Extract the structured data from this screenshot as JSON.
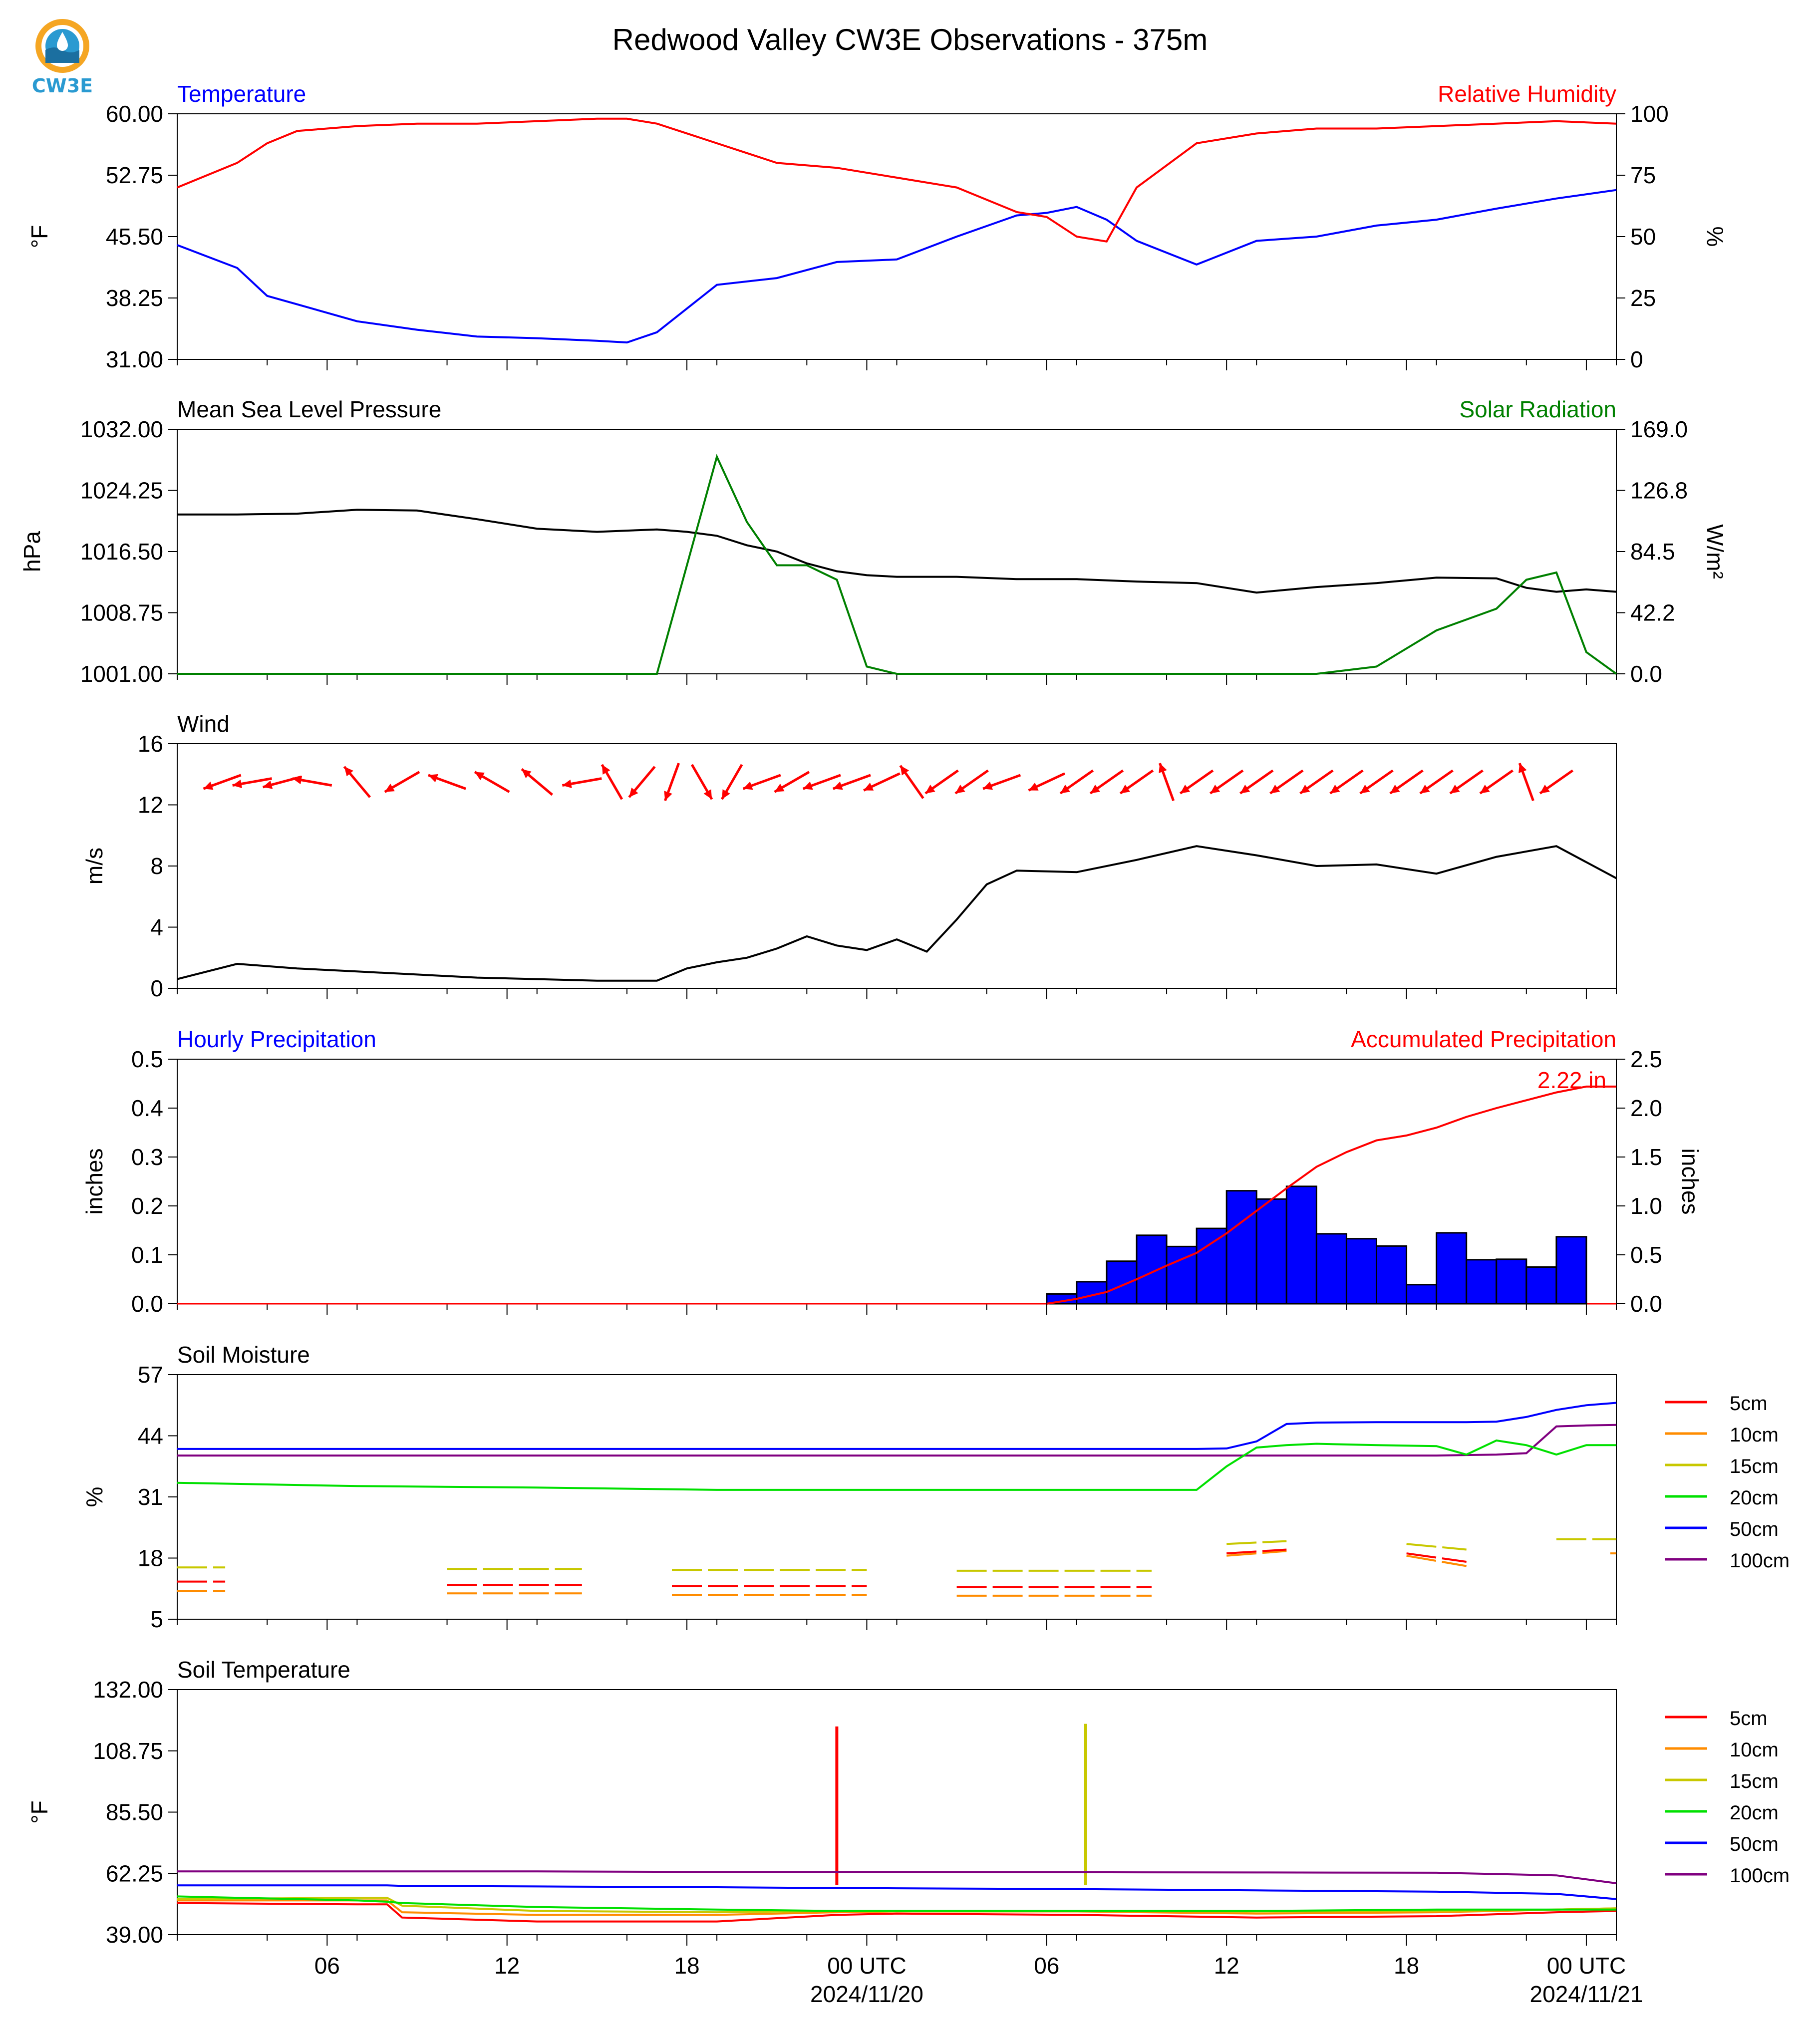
{
  "title": "Redwood Valley CW3E Observations - 375m",
  "logo": {
    "text": "CW3E",
    "color_orange": "#f5a623",
    "color_blue": "#2a9ad1"
  },
  "colors": {
    "blue": "#0000ff",
    "red": "#ff0000",
    "green": "#008000",
    "black": "#000000",
    "s5": "#ff0000",
    "s10": "#ff8c00",
    "s15": "#c8c800",
    "s20": "#00e000",
    "s50": "#0000ff",
    "s100": "#800080"
  },
  "x_axis": {
    "range_hours": [
      0,
      48
    ],
    "ticks_hours": [
      0,
      3,
      6,
      9,
      12,
      15,
      18,
      21,
      24,
      27,
      30,
      33,
      36,
      39,
      42,
      45,
      48
    ],
    "labeled": [
      {
        "h": 5,
        "text": "06"
      },
      {
        "h": 11,
        "text": "12"
      },
      {
        "h": 17,
        "text": "18"
      },
      {
        "h": 23,
        "text": "00 UTC",
        "sub": "2024/11/20"
      },
      {
        "h": 29,
        "text": "06"
      },
      {
        "h": 35,
        "text": "12"
      },
      {
        "h": 41,
        "text": "18"
      },
      {
        "h": 47,
        "text": "00 UTC",
        "sub": "2024/11/21"
      }
    ]
  },
  "panels": {
    "temp_rh": {
      "left_title": "Temperature",
      "right_title": "Relative Humidity",
      "left_ylabel": "°F",
      "right_ylabel": "%",
      "left_ticks": [
        "60.00",
        "52.75",
        "45.50",
        "38.25",
        "31.00"
      ],
      "right_ticks": [
        "100",
        "75",
        "50",
        "25",
        "0"
      ]
    },
    "pressure_solar": {
      "left_title": "Mean Sea Level Pressure",
      "right_title": "Solar Radiation",
      "left_ylabel": "hPa",
      "right_ylabel": "W/m²",
      "left_ticks": [
        "1032.00",
        "1024.25",
        "1016.50",
        "1008.75",
        "1001.00"
      ],
      "right_ticks": [
        "169.0",
        "126.8",
        "84.5",
        "42.2",
        "0.0"
      ]
    },
    "wind": {
      "left_title": "Wind",
      "left_ylabel": "m/s",
      "left_ticks": [
        "16",
        "12",
        "8",
        "4",
        "0"
      ]
    },
    "precip": {
      "left_title": "Hourly Precipitation",
      "right_title": "Accumulated Precipitation",
      "left_ylabel": "inches",
      "right_ylabel": "inches",
      "left_ticks": [
        "0.5",
        "0.4",
        "0.3",
        "0.2",
        "0.1",
        "0.0"
      ],
      "right_ticks": [
        "2.5",
        "2.0",
        "1.5",
        "1.0",
        "0.5",
        "0.0"
      ],
      "annotation": "2.22 in"
    },
    "soil_moisture": {
      "left_title": "Soil Moisture",
      "left_ylabel": "%",
      "left_ticks": [
        "57",
        "44",
        "31",
        "18",
        "5"
      ],
      "legend": [
        "5cm",
        "10cm",
        "15cm",
        "20cm",
        "50cm",
        "100cm"
      ]
    },
    "soil_temp": {
      "left_title": "Soil Temperature",
      "left_ylabel": "°F",
      "left_ticks": [
        "132.00",
        "108.75",
        "85.50",
        "62.25",
        "39.00"
      ],
      "legend": [
        "5cm",
        "10cm",
        "15cm",
        "20cm",
        "50cm",
        "100cm"
      ]
    }
  },
  "chart_data": [
    {
      "type": "line",
      "title": "Temperature / Relative Humidity",
      "x_hours": [
        0,
        2,
        3,
        4,
        6,
        8,
        10,
        12,
        14,
        15,
        16,
        18,
        20,
        22,
        24,
        26,
        28,
        29,
        30,
        31,
        32,
        34,
        36,
        38,
        40,
        42,
        44,
        46,
        48
      ],
      "series": [
        {
          "name": "Temperature",
          "axis": "left",
          "ylim": [
            31,
            60
          ],
          "values": [
            44.5,
            41.8,
            38.5,
            37.5,
            35.5,
            34.5,
            33.7,
            33.5,
            33.2,
            33.0,
            34.2,
            39.8,
            40.6,
            42.5,
            42.8,
            45.5,
            48.0,
            48.3,
            49.0,
            47.5,
            45.0,
            42.2,
            45.0,
            45.5,
            46.8,
            47.5,
            48.8,
            50.0,
            51.0
          ]
        },
        {
          "name": "Relative Humidity",
          "axis": "right",
          "ylim": [
            0,
            100
          ],
          "values": [
            70,
            80,
            88,
            93,
            95,
            96,
            96,
            97,
            98,
            98,
            96,
            88,
            80,
            78,
            74,
            70,
            60,
            58,
            50,
            48,
            70,
            88,
            92,
            94,
            94,
            95,
            96,
            97,
            96
          ]
        }
      ]
    },
    {
      "type": "line",
      "title": "Mean Sea Level Pressure / Solar Radiation",
      "x_hours": [
        0,
        2,
        4,
        6,
        8,
        10,
        12,
        14,
        16,
        17,
        18,
        19,
        20,
        21,
        22,
        23,
        24,
        26,
        28,
        30,
        32,
        34,
        36,
        38,
        40,
        42,
        44,
        45,
        46,
        47,
        48
      ],
      "series": [
        {
          "name": "Mean Sea Level Pressure",
          "axis": "left",
          "ylim": [
            1001,
            1032
          ],
          "values": [
            1021.2,
            1021.2,
            1021.3,
            1021.8,
            1021.7,
            1020.6,
            1019.4,
            1019.0,
            1019.3,
            1019.0,
            1018.5,
            1017.3,
            1016.5,
            1015.0,
            1014.0,
            1013.5,
            1013.3,
            1013.3,
            1013.0,
            1013.0,
            1012.7,
            1012.5,
            1011.3,
            1012.0,
            1012.5,
            1013.2,
            1013.1,
            1011.9,
            1011.4,
            1011.7,
            1011.4
          ]
        },
        {
          "name": "Solar Radiation",
          "axis": "right",
          "ylim": [
            0,
            169
          ],
          "values": [
            0,
            0,
            0,
            0,
            0,
            0,
            0,
            0,
            0,
            75,
            150,
            105,
            75,
            75,
            65,
            5,
            0,
            0,
            0,
            0,
            0,
            0,
            0,
            0,
            5,
            30,
            45,
            65,
            70,
            15,
            0
          ]
        }
      ]
    },
    {
      "type": "line",
      "title": "Wind",
      "ylim": [
        0,
        16
      ],
      "x_hours": [
        0,
        2,
        4,
        6,
        8,
        10,
        12,
        14,
        16,
        17,
        18,
        19,
        20,
        21,
        22,
        23,
        24,
        25,
        26,
        27,
        28,
        30,
        32,
        34,
        36,
        38,
        40,
        42,
        44,
        46,
        48
      ],
      "values": [
        0.6,
        1.6,
        1.3,
        1.1,
        0.9,
        0.7,
        0.6,
        0.5,
        0.5,
        1.3,
        1.7,
        2.0,
        2.6,
        3.4,
        2.8,
        2.5,
        3.2,
        2.4,
        4.5,
        6.8,
        7.7,
        7.6,
        8.4,
        9.3,
        8.7,
        8.0,
        8.1,
        7.5,
        8.6,
        9.3,
        7.2
      ],
      "barbs": {
        "x_hours": [
          1.5,
          2.5,
          3.5,
          4.5,
          6,
          7.5,
          9,
          10.5,
          12,
          13.5,
          14.5,
          15.5,
          16.5,
          17.5,
          18.5,
          19.5,
          20.5,
          21.5,
          22.5,
          23.5,
          24.5,
          25.5,
          26.5,
          27.5,
          29.0,
          30.0,
          31.0,
          32.0,
          33.0,
          34.0,
          35.0,
          36.0,
          37.0,
          38.0,
          39.0,
          40.0,
          41.0,
          42.0,
          43.0,
          44.0,
          45.0,
          46.0
        ],
        "dir_deg": [
          250,
          260,
          255,
          280,
          320,
          240,
          290,
          300,
          310,
          260,
          330,
          220,
          200,
          150,
          210,
          250,
          240,
          250,
          250,
          245,
          325,
          235,
          235,
          250,
          245,
          235,
          235,
          235,
          340,
          235,
          235,
          235,
          235,
          235,
          235,
          235,
          235,
          235,
          235,
          235,
          340,
          235
        ]
      }
    },
    {
      "type": "bar",
      "title": "Hourly Precipitation / Accumulated Precipitation",
      "x_hours_start": [
        29,
        30,
        31,
        32,
        33,
        34,
        35,
        36,
        37,
        38,
        39,
        40,
        41,
        42,
        43,
        44,
        45,
        46,
        47
      ],
      "values": [
        0.02,
        0.045,
        0.087,
        0.14,
        0.117,
        0.154,
        0.231,
        0.214,
        0.24,
        0.143,
        0.133,
        0.118,
        0.039,
        0.145,
        0.09,
        0.091,
        0.075,
        0.137,
        0.0
      ],
      "ylim": [
        0,
        0.5
      ],
      "accumulated": {
        "x_hours": [
          29,
          30,
          31,
          32,
          33,
          34,
          35,
          36,
          37,
          38,
          39,
          40,
          41,
          42,
          43,
          44,
          45,
          46,
          47,
          48
        ],
        "values": [
          0.0,
          0.05,
          0.12,
          0.25,
          0.39,
          0.52,
          0.72,
          0.95,
          1.18,
          1.4,
          1.55,
          1.67,
          1.72,
          1.8,
          1.91,
          2.0,
          2.08,
          2.16,
          2.22,
          2.22
        ],
        "ylim": [
          0,
          2.5
        ]
      }
    },
    {
      "type": "line",
      "title": "Soil Moisture",
      "ylim": [
        5,
        57
      ],
      "x_hours": [
        0,
        6,
        12,
        18,
        24,
        30,
        33,
        34,
        35,
        36,
        37,
        38,
        40,
        42,
        43,
        44,
        45,
        46,
        47,
        48
      ],
      "series": [
        {
          "name": "50cm",
          "values": [
            41.2,
            41.2,
            41.2,
            41.2,
            41.2,
            41.2,
            41.2,
            41.2,
            41.3,
            42.8,
            46.5,
            46.8,
            46.9,
            46.9,
            46.9,
            47.0,
            48.0,
            49.5,
            50.5,
            51.0
          ]
        },
        {
          "name": "100cm",
          "values": [
            39.8,
            39.8,
            39.8,
            39.8,
            39.8,
            39.8,
            39.8,
            39.8,
            39.8,
            39.8,
            39.8,
            39.8,
            39.8,
            39.8,
            39.9,
            40.0,
            40.3,
            46.0,
            46.2,
            46.3
          ]
        },
        {
          "name": "20cm",
          "values": [
            34.0,
            33.3,
            33.0,
            32.5,
            32.5,
            32.5,
            32.5,
            32.5,
            37.5,
            41.5,
            42.0,
            42.3,
            42.0,
            41.8,
            40.0,
            43.0,
            42.0,
            40.0,
            42.0,
            42.0
          ]
        }
      ],
      "fragments": [
        {
          "name": "15cm",
          "segments": [
            [
              [
                0,
                16.0
              ],
              [
                1.6,
                16.0
              ]
            ],
            [
              [
                9,
                15.7
              ],
              [
                13.5,
                15.7
              ]
            ],
            [
              [
                16.5,
                15.5
              ],
              [
                23,
                15.5
              ]
            ],
            [
              [
                26,
                15.3
              ],
              [
                32.5,
                15.3
              ]
            ],
            [
              [
                35,
                21.0
              ],
              [
                37,
                21.6
              ]
            ],
            [
              [
                41,
                21.0
              ],
              [
                43,
                19.8
              ]
            ],
            [
              [
                46,
                22.0
              ],
              [
                48,
                22.0
              ]
            ]
          ]
        },
        {
          "name": "10cm",
          "segments": [
            [
              [
                0,
                11.0
              ],
              [
                1.6,
                11.0
              ]
            ],
            [
              [
                9,
                10.5
              ],
              [
                13.5,
                10.5
              ]
            ],
            [
              [
                16.5,
                10.2
              ],
              [
                23,
                10.2
              ]
            ],
            [
              [
                26,
                10.0
              ],
              [
                32.5,
                10.0
              ]
            ],
            [
              [
                35,
                18.5
              ],
              [
                37,
                19.5
              ]
            ],
            [
              [
                41,
                18.5
              ],
              [
                43,
                16.3
              ]
            ],
            [
              [
                47.8,
                19.0
              ],
              [
                48,
                19.0
              ]
            ]
          ]
        },
        {
          "name": "5cm",
          "segments": [
            [
              [
                0,
                13.0
              ],
              [
                1.6,
                13.0
              ]
            ],
            [
              [
                9,
                12.3
              ],
              [
                13.5,
                12.3
              ]
            ],
            [
              [
                16.5,
                12.0
              ],
              [
                23,
                12.0
              ]
            ],
            [
              [
                26,
                11.8
              ],
              [
                32.5,
                11.8
              ]
            ],
            [
              [
                35,
                19.0
              ],
              [
                37,
                19.8
              ]
            ],
            [
              [
                41,
                19.0
              ],
              [
                43,
                17.2
              ]
            ]
          ]
        }
      ]
    },
    {
      "type": "line",
      "title": "Soil Temperature",
      "ylim": [
        39,
        132
      ],
      "x_hours": [
        0,
        6,
        7,
        7.5,
        12,
        18,
        22,
        24,
        30,
        36,
        42,
        46,
        48
      ],
      "series": [
        {
          "name": "5cm",
          "values": [
            51.0,
            50.5,
            50.5,
            45.5,
            44.0,
            44.0,
            46.5,
            47.0,
            46.5,
            45.5,
            46.0,
            47.5,
            48.0
          ],
          "spike": {
            "x": 22,
            "value": 118
          }
        },
        {
          "name": "10cm",
          "values": [
            52.0,
            52.0,
            52.0,
            47.5,
            46.5,
            46.5,
            47.5,
            47.8,
            47.8,
            47.0,
            47.5,
            48.5,
            49.0
          ]
        },
        {
          "name": "15cm",
          "values": [
            52.5,
            53.0,
            53.0,
            50.0,
            48.0,
            47.5,
            48.0,
            48.0,
            48.0,
            47.8,
            48.0,
            48.5,
            49.0
          ],
          "spike": {
            "x": 30.3,
            "value": 119
          }
        },
        {
          "name": "20cm",
          "values": [
            53.5,
            52.0,
            51.5,
            51.0,
            49.5,
            48.5,
            48.0,
            48.0,
            48.0,
            48.0,
            48.5,
            48.5,
            48.5
          ]
        },
        {
          "name": "50cm",
          "values": [
            57.7,
            57.7,
            57.7,
            57.5,
            57.3,
            57.0,
            56.7,
            56.6,
            56.3,
            55.8,
            55.3,
            54.5,
            52.5
          ]
        },
        {
          "name": "100cm",
          "values": [
            63.0,
            63.0,
            63.0,
            63.0,
            63.0,
            62.8,
            62.8,
            62.8,
            62.7,
            62.6,
            62.5,
            61.5,
            58.5
          ]
        }
      ]
    }
  ]
}
